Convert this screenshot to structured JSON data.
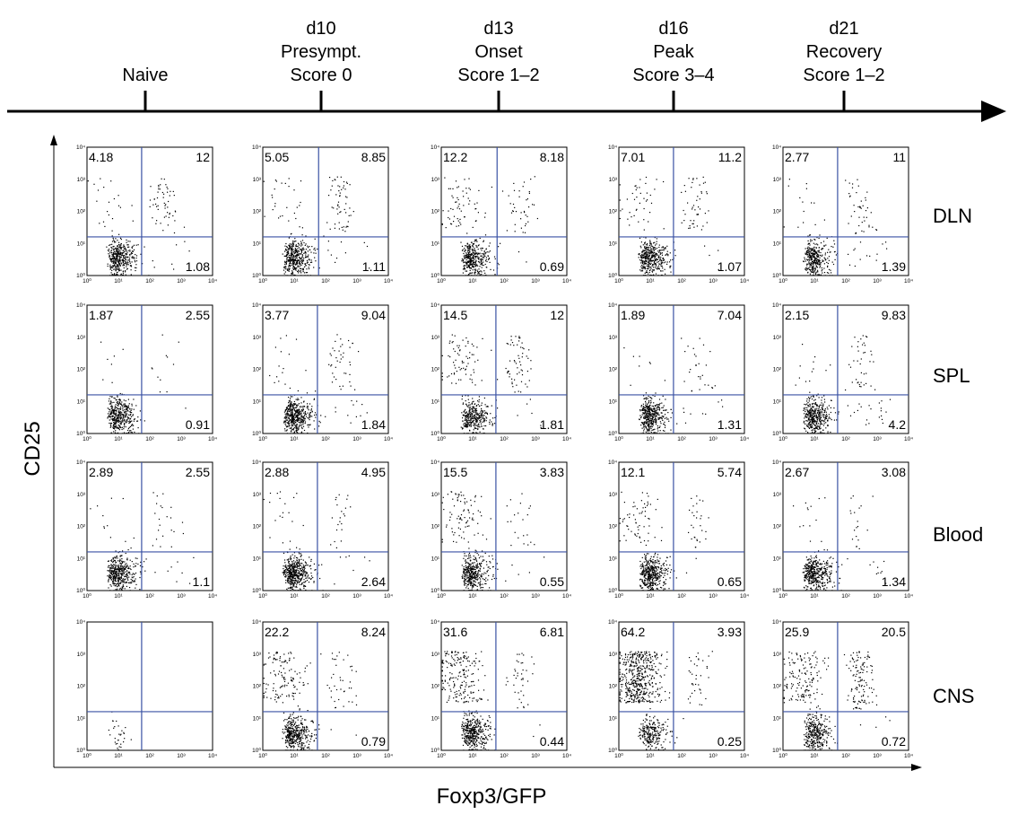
{
  "chart_data": {
    "type": "scatter",
    "description_axis": {
      "xlabel": "Foxp3/GFP",
      "ylabel": "CD25"
    },
    "timeline": [
      {
        "lines": [
          "Naive"
        ]
      },
      {
        "lines": [
          "d10",
          "Presympt.",
          "Score 0"
        ]
      },
      {
        "lines": [
          "d13",
          "Onset",
          "Score 1–2"
        ]
      },
      {
        "lines": [
          "d16",
          "Peak",
          "Score 3–4"
        ]
      },
      {
        "lines": [
          "d21",
          "Recovery",
          "Score 1–2"
        ]
      }
    ],
    "rows": [
      "DLN",
      "SPL",
      "Blood",
      "CNS"
    ],
    "log_ticks": [
      "10⁰",
      "10¹",
      "10²",
      "10³",
      "10⁴"
    ],
    "xlim": [
      1,
      10000
    ],
    "ylim": [
      1,
      10000
    ],
    "quadrant_percentages": [
      [
        {
          "ul": "4.18",
          "ur": "12",
          "lr": "1.08"
        },
        {
          "ul": "5.05",
          "ur": "8.85",
          "lr": "1.11"
        },
        {
          "ul": "12.2",
          "ur": "8.18",
          "lr": "0.69"
        },
        {
          "ul": "7.01",
          "ur": "11.2",
          "lr": "1.07"
        },
        {
          "ul": "2.77",
          "ur": "11",
          "lr": "1.39"
        }
      ],
      [
        {
          "ul": "1.87",
          "ur": "2.55",
          "lr": "0.91"
        },
        {
          "ul": "3.77",
          "ur": "9.04",
          "lr": "1.84"
        },
        {
          "ul": "14.5",
          "ur": "12",
          "lr": "1.81"
        },
        {
          "ul": "1.89",
          "ur": "7.04",
          "lr": "1.31"
        },
        {
          "ul": "2.15",
          "ur": "9.83",
          "lr": "4.2"
        }
      ],
      [
        {
          "ul": "2.89",
          "ur": "2.55",
          "lr": "1.1"
        },
        {
          "ul": "2.88",
          "ur": "4.95",
          "lr": "2.64"
        },
        {
          "ul": "15.5",
          "ur": "3.83",
          "lr": "0.55"
        },
        {
          "ul": "12.1",
          "ur": "5.74",
          "lr": "0.65"
        },
        {
          "ul": "2.67",
          "ur": "3.08",
          "lr": "1.34"
        }
      ],
      [
        {
          "ul": "",
          "ur": "",
          "lr": ""
        },
        {
          "ul": "22.2",
          "ur": "8.24",
          "lr": "0.79"
        },
        {
          "ul": "31.6",
          "ur": "6.81",
          "lr": "0.44"
        },
        {
          "ul": "64.2",
          "ur": "3.93",
          "lr": "0.25"
        },
        {
          "ul": "25.9",
          "ur": "20.5",
          "lr": "0.72"
        }
      ]
    ],
    "quadrant_gate_colour": "#3a52a4",
    "gates": [
      [
        [
          55,
          16
        ],
        [
          60,
          16
        ],
        [
          60,
          16
        ],
        [
          55,
          16
        ],
        [
          55,
          16
        ]
      ],
      [
        [
          55,
          16
        ],
        [
          55,
          16
        ],
        [
          55,
          16
        ],
        [
          55,
          16
        ],
        [
          55,
          16
        ]
      ],
      [
        [
          55,
          16
        ],
        [
          55,
          16
        ],
        [
          55,
          16
        ],
        [
          55,
          16
        ],
        [
          55,
          16
        ]
      ],
      [
        [
          55,
          16
        ],
        [
          55,
          16
        ],
        [
          55,
          16
        ],
        [
          55,
          16
        ],
        [
          55,
          16
        ]
      ]
    ],
    "event_density": [
      [
        500,
        520,
        480,
        500,
        420
      ],
      [
        420,
        520,
        480,
        460,
        480
      ],
      [
        460,
        520,
        500,
        520,
        460
      ],
      [
        30,
        560,
        640,
        780,
        600
      ]
    ]
  }
}
